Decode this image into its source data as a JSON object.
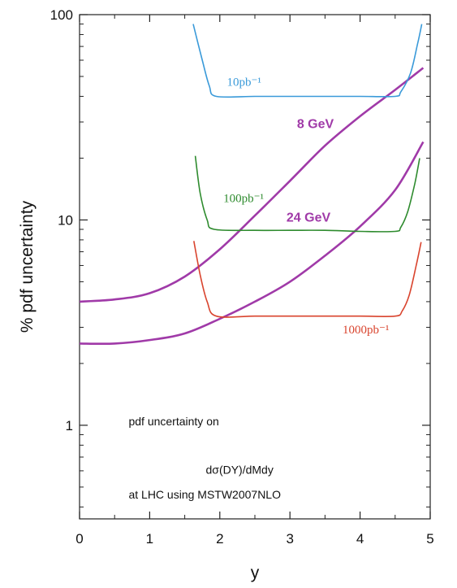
{
  "chart_data": {
    "type": "line",
    "title": "",
    "xlabel": "y",
    "ylabel": "% pdf uncertainty",
    "xlim": [
      0,
      5
    ],
    "ylim": [
      0.35,
      100
    ],
    "yscale": "log",
    "grid": false,
    "x_ticks": [
      "0",
      "1",
      "2",
      "3",
      "4",
      "5"
    ],
    "y_ticks": [
      "1",
      "10",
      "100"
    ],
    "annotations": [
      {
        "text": "pdf uncertainty on",
        "x": 0.7,
        "y": 1.0,
        "color": "#111111"
      },
      {
        "text": "dσ(DY)/dMdy",
        "x": 1.8,
        "y": 0.58,
        "color": "#a03aa8"
      },
      {
        "text": "at LHC using MSTW2007NLO",
        "x": 0.7,
        "y": 0.44,
        "color": "#111111"
      }
    ],
    "series": [
      {
        "name": "8 GeV",
        "color": "#a03aa8",
        "label_pos": [
          3.1,
          28
        ],
        "x": [
          0.0,
          0.5,
          1.0,
          1.5,
          2.0,
          2.5,
          3.0,
          3.5,
          4.0,
          4.5,
          4.9
        ],
        "y": [
          4.0,
          4.1,
          4.4,
          5.3,
          7.2,
          10.5,
          15.5,
          23.0,
          32.0,
          43.0,
          55.0
        ]
      },
      {
        "name": "24 GeV",
        "color": "#a03aa8",
        "label_pos": [
          2.95,
          9.8
        ],
        "x": [
          0.0,
          0.5,
          1.0,
          1.5,
          2.0,
          2.5,
          3.0,
          3.5,
          4.0,
          4.5,
          4.9
        ],
        "y": [
          2.5,
          2.5,
          2.6,
          2.8,
          3.3,
          4.0,
          5.0,
          6.7,
          9.3,
          14.0,
          24.0
        ]
      },
      {
        "name": "10pb⁻¹",
        "color": "#3a9ad9",
        "label_pos": [
          2.1,
          45
        ],
        "x": [
          1.62,
          1.75,
          1.85,
          1.95,
          2.5,
          3.0,
          3.5,
          4.0,
          4.5,
          4.58,
          4.72,
          4.82,
          4.88
        ],
        "y": [
          90.0,
          60.0,
          45.0,
          40.0,
          40.0,
          40.0,
          40.0,
          40.0,
          40.0,
          42.0,
          52.0,
          72.0,
          90.0
        ]
      },
      {
        "name": "100pb⁻¹",
        "color": "#2e8b2e",
        "label_pos": [
          2.05,
          12.2
        ],
        "x": [
          1.65,
          1.72,
          1.82,
          1.92,
          2.5,
          3.0,
          3.5,
          4.0,
          4.5,
          4.58,
          4.68,
          4.78,
          4.85
        ],
        "y": [
          20.5,
          13.5,
          10.0,
          9.0,
          8.9,
          8.9,
          8.9,
          8.8,
          8.8,
          9.2,
          11.0,
          15.0,
          20.0
        ]
      },
      {
        "name": "1000pb⁻¹",
        "color": "#d9442e",
        "label_pos": [
          3.75,
          2.8
        ],
        "x": [
          1.63,
          1.72,
          1.82,
          1.95,
          2.5,
          3.0,
          3.5,
          4.0,
          4.5,
          4.6,
          4.7,
          4.8,
          4.87
        ],
        "y": [
          7.9,
          5.4,
          4.0,
          3.4,
          3.4,
          3.4,
          3.4,
          3.4,
          3.4,
          3.6,
          4.3,
          6.0,
          7.8
        ]
      }
    ]
  }
}
